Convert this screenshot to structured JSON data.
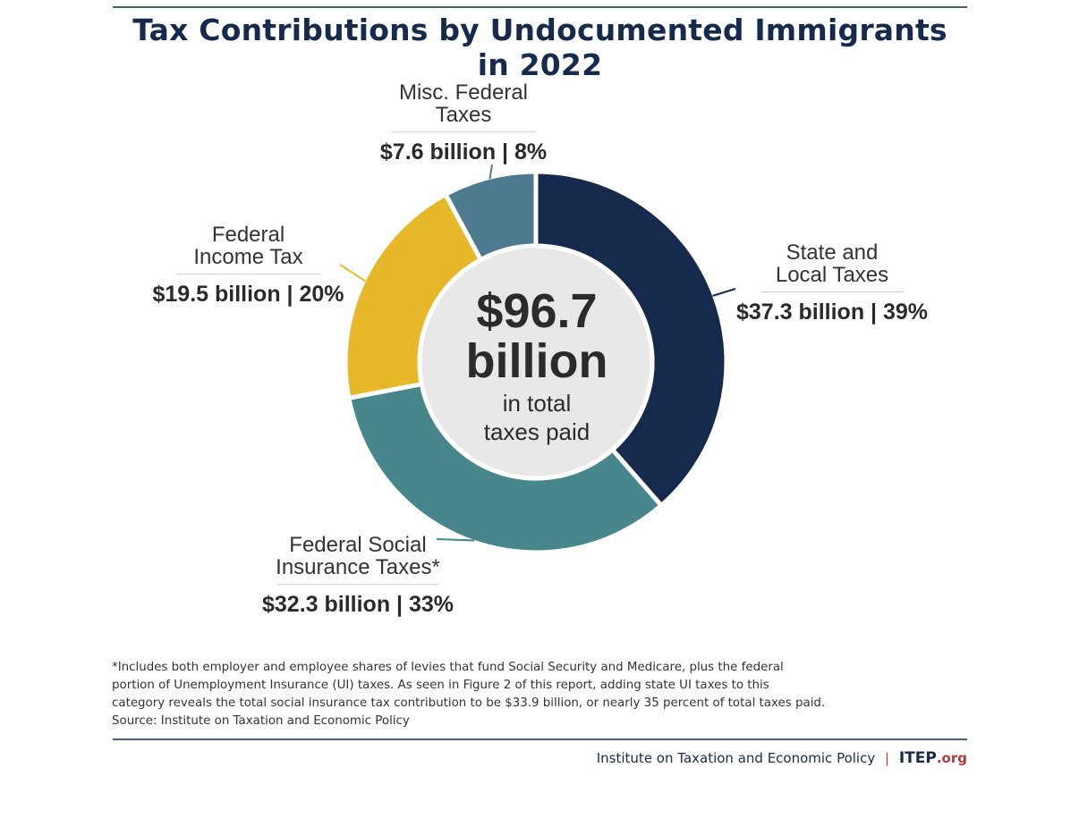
{
  "chart_data": {
    "type": "pie",
    "variant": "donut",
    "title": "Tax Contributions by Undocumented Immigrants in 2022",
    "total": {
      "value": 96.7,
      "big_text": [
        "$96.7",
        "billion"
      ],
      "small_text": [
        "in total",
        "taxes paid"
      ]
    },
    "slices": [
      {
        "name_lines": [
          "State and",
          "Local Taxes"
        ],
        "value": 37.3,
        "percent": 39,
        "value_label": "$37.3 billion | 39%",
        "color": "#152a4d"
      },
      {
        "name_lines": [
          "Federal Social",
          "Insurance Taxes*"
        ],
        "value": 32.3,
        "percent": 33,
        "value_label": "$32.3 billion | 33%",
        "color": "#47878c"
      },
      {
        "name_lines": [
          "Federal",
          "Income Tax"
        ],
        "value": 19.5,
        "percent": 20,
        "value_label": "$19.5 billion | 20%",
        "color": "#e6b82a"
      },
      {
        "name_lines": [
          "Misc. Federal",
          "Taxes"
        ],
        "value": 7.6,
        "percent": 8,
        "value_label": "$7.6 billion | 8%",
        "color": "#4e7a90"
      }
    ]
  },
  "center_fill": "#e8e8e8",
  "footnote_lines": [
    "*Includes both employer and employee shares of levies that fund Social Security and Medicare, plus the federal",
    "portion of Unemployment Insurance (UI) taxes. As seen in Figure 2 of this report, adding state UI taxes to this",
    "category reveals the total social insurance tax contribution to be $33.9 billion, or nearly 35 percent of total taxes paid.",
    "Source: Institute on Taxation and Economic Policy"
  ],
  "credit": {
    "org": "Institute on Taxation and Economic Policy",
    "separator": "|",
    "brand": "ITEP",
    "brand_tld": ".org"
  }
}
